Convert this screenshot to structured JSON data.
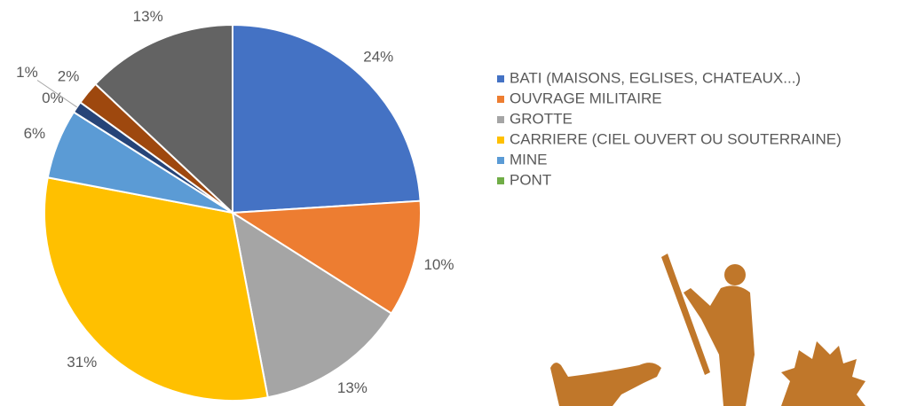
{
  "chart_data": {
    "type": "pie",
    "categories": [
      "BATI (MAISONS, EGLISES, CHATEAUX...)",
      "OUVRAGE MILITAIRE",
      "GROTTE",
      "CARRIERE (CIEL OUVERT OU SOUTERRAINE)",
      "MINE",
      "PONT",
      null,
      null,
      null
    ],
    "values": [
      24,
      10,
      13,
      31,
      6,
      0,
      1,
      2,
      13
    ],
    "value_labels": [
      "24%",
      "10%",
      "13%",
      "31%",
      "6%",
      "0%",
      "1%",
      "2%",
      "13%"
    ],
    "colors": [
      "#4472c4",
      "#ed7d31",
      "#a5a5a5",
      "#ffc000",
      "#5b9bd5",
      "#70ad47",
      "#264478",
      "#9e480e",
      "#636363"
    ],
    "legend": "right"
  }
}
